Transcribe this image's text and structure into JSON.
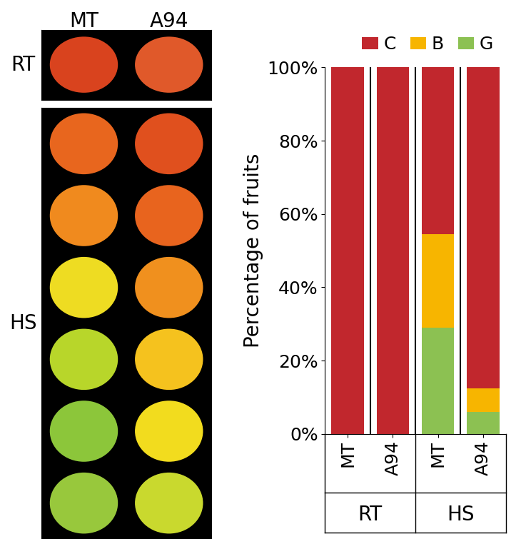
{
  "chart_data": {
    "type": "bar",
    "stacked": true,
    "y_label": "Percentage of fruits",
    "categories": [
      "MT",
      "A94",
      "MT",
      "A94"
    ],
    "groups": [
      "RT",
      "RT",
      "HS",
      "HS"
    ],
    "series": [
      {
        "name": "G",
        "color": "#8cc152",
        "values": [
          0,
          0,
          29,
          6
        ]
      },
      {
        "name": "B",
        "color": "#f7b500",
        "values": [
          0,
          0,
          25.5,
          6.5
        ]
      },
      {
        "name": "C",
        "color": "#c1272d",
        "values": [
          100,
          100,
          45.5,
          87.5
        ]
      }
    ],
    "legend_order": [
      "C",
      "B",
      "G"
    ],
    "legend": "upper right",
    "ylim": [
      0,
      100
    ],
    "yticks": [
      {
        "value": 0,
        "label": "0%"
      },
      {
        "value": 20,
        "label": "20%"
      },
      {
        "value": 40,
        "label": "40%"
      },
      {
        "value": 60,
        "label": "60%"
      },
      {
        "value": 80,
        "label": "80%"
      },
      {
        "value": 100,
        "label": "100%"
      }
    ],
    "grid": false
  },
  "photo_panel": {
    "columns": [
      "MT",
      "A94"
    ],
    "rows": [
      "RT",
      "HS"
    ]
  }
}
